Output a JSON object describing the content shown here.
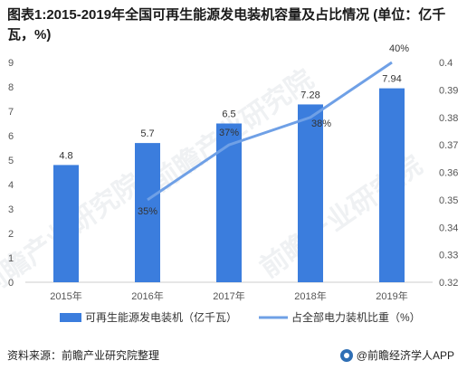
{
  "title": "图表1:2015-2019年全国可再生能源发电装机容量及占比情况 (单位：亿千瓦，%)",
  "chart_data": {
    "type": "bar",
    "categories": [
      "2015年",
      "2016年",
      "2017年",
      "2018年",
      "2019年"
    ],
    "series": [
      {
        "name": "可再生能源发电装机（亿千瓦）",
        "type": "bar",
        "axis": "left",
        "values": [
          4.8,
          5.7,
          6.5,
          7.28,
          7.94
        ],
        "labels": [
          "4.8",
          "5.7",
          "6.5",
          "7.28",
          "7.94"
        ]
      },
      {
        "name": "占全部电力装机比重（%）",
        "type": "line",
        "axis": "right",
        "values": [
          null,
          0.35,
          0.37,
          0.38,
          0.4
        ],
        "labels": [
          "",
          "35%",
          "37%",
          "38%",
          "40%"
        ]
      }
    ],
    "y_left": {
      "ylim": [
        0,
        9
      ],
      "ticks": [
        "0",
        "1",
        "2",
        "3",
        "4",
        "5",
        "6",
        "7",
        "8",
        "9"
      ]
    },
    "y_right": {
      "ylim": [
        0.32,
        0.4
      ],
      "ticks": [
        "0.32",
        "0.33",
        "0.34",
        "0.35",
        "0.36",
        "0.37",
        "0.38",
        "0.39",
        "0.4"
      ]
    },
    "grid": false,
    "legend": "bottom",
    "colors": {
      "bar": "#3b7ddd",
      "line": "#6fa0e6"
    }
  },
  "footer": {
    "source": "资料来源：前瞻产业研究院整理",
    "brand": "@前瞻经济学人APP"
  },
  "watermarks": [
    "前瞻产业研究院",
    "前瞻产业研究院",
    "前瞻产业研究院"
  ]
}
